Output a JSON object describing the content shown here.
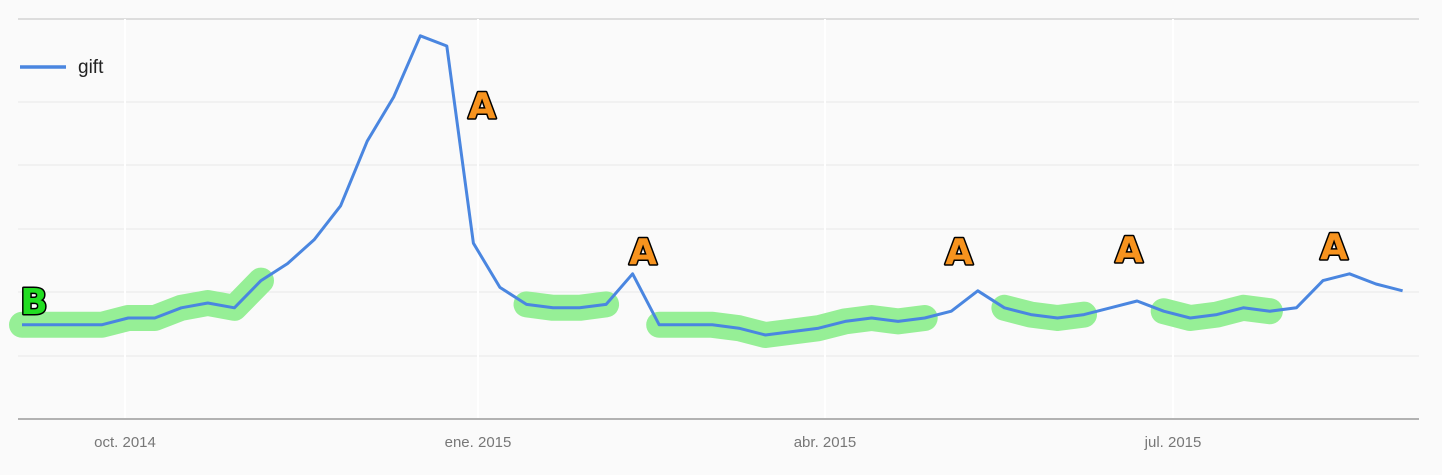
{
  "chart_data": {
    "type": "line",
    "title": "",
    "xlabel": "",
    "ylabel": "",
    "x_tick_labels": [
      "oct. 2014",
      "ene. 2015",
      "abr. 2015",
      "jul. 2015"
    ],
    "y_range": [
      0,
      100
    ],
    "grid": true,
    "legend_position": "top-left",
    "series": [
      {
        "name": "gift",
        "color": "#4a86e0",
        "values": [
          14,
          14,
          14,
          14,
          15,
          15,
          16.5,
          17.2,
          16.5,
          20.5,
          23,
          26.5,
          31.5,
          41,
          47.5,
          56.5,
          55,
          26,
          19.5,
          17,
          16.5,
          16.5,
          17,
          21.5,
          14,
          14,
          14,
          13.5,
          12.5,
          13,
          13.5,
          14.5,
          15,
          14.5,
          15,
          16,
          19,
          16.5,
          15.5,
          15,
          15.5,
          16.5,
          17.5,
          16,
          15,
          15.5,
          16.5,
          16,
          16.5,
          20.5,
          21.5,
          20,
          19
        ]
      }
    ],
    "annotations": {
      "A_color": "#f7931e",
      "B_color": "#22dd22",
      "highlight_color": "#90ee90",
      "markers": [
        {
          "label": "A",
          "index": 17
        },
        {
          "label": "A",
          "index": 23
        },
        {
          "label": "A",
          "index": 35
        },
        {
          "label": "A",
          "index": 41
        },
        {
          "label": "A",
          "index": 49
        },
        {
          "label": "B",
          "index": 0
        }
      ],
      "highlight_ranges": [
        [
          0,
          9
        ],
        [
          19,
          22
        ],
        [
          24,
          34
        ],
        [
          37,
          40
        ],
        [
          43,
          47
        ]
      ]
    }
  }
}
